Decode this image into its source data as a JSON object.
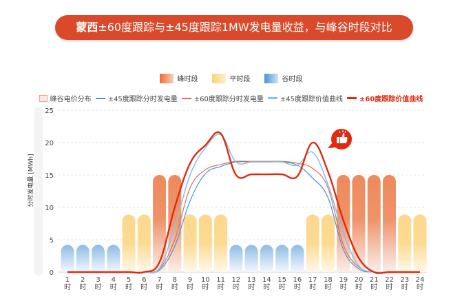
{
  "title": {
    "bold": "蒙西",
    "rest": "±60度跟踪与±45度跟踪1MW发电量收益，与峰谷时段对比"
  },
  "colors": {
    "peak": "#ee8a5c",
    "flat": "#fdd88e",
    "valley": "#8fbbe6",
    "banner": "#d9492a",
    "gen45": "#3b9ad6",
    "gen60": "#e8695a",
    "val45": "#86c3ea",
    "val60": "#e02a10"
  },
  "chart_data": {
    "type": "bar+line",
    "ylabel": "分时发电量 [MWh]",
    "ylim": [
      0,
      25
    ],
    "yticks": [
      0,
      5,
      10,
      15,
      20,
      25
    ],
    "grid": true,
    "categories": [
      "1时",
      "2时",
      "3时",
      "4时",
      "5时",
      "6时",
      "7时",
      "8时",
      "9时",
      "10时",
      "11时",
      "12时",
      "13时",
      "14时",
      "15时",
      "16时",
      "17时",
      "18时",
      "19时",
      "20时",
      "21时",
      "22时",
      "23时",
      "24时"
    ],
    "tick_numbers": [
      "1",
      "2",
      "3",
      "4",
      "5",
      "6",
      "7",
      "8",
      "9",
      "10",
      "11",
      "12",
      "13",
      "14",
      "15",
      "16",
      "17",
      "18",
      "19",
      "20",
      "21",
      "22",
      "23",
      "24"
    ],
    "tick_unit": "时",
    "period_legend": [
      {
        "key": "peak",
        "label": "峰时段"
      },
      {
        "key": "flat",
        "label": "平时段"
      },
      {
        "key": "valley",
        "label": "谷时段"
      }
    ],
    "bar_series": {
      "name": "峰谷电价分布",
      "periods": [
        "valley",
        "valley",
        "valley",
        "valley",
        "flat",
        "flat",
        "peak",
        "peak",
        "flat",
        "flat",
        "flat",
        "valley",
        "valley",
        "valley",
        "valley",
        "valley",
        "flat",
        "flat",
        "peak",
        "peak",
        "peak",
        "peak",
        "flat",
        "flat"
      ],
      "values": [
        4.2,
        4.2,
        4.2,
        4.2,
        8.9,
        8.9,
        15,
        15,
        8.9,
        8.9,
        8.9,
        4.2,
        4.2,
        4.2,
        4.2,
        4.2,
        8.9,
        8.9,
        15,
        15,
        15,
        15,
        8.9,
        8.9
      ]
    },
    "series": [
      {
        "name": "±45度跟踪分时发电量",
        "color": "gen45",
        "width": 1.2,
        "values": [
          0,
          0,
          0,
          0,
          0,
          0,
          0.3,
          4,
          11,
          15.2,
          16.3,
          17,
          17,
          17,
          17,
          16.5,
          14.5,
          11.5,
          3.5,
          0.5,
          0,
          0,
          0,
          0
        ]
      },
      {
        "name": "±60度跟踪分时发电量",
        "color": "gen60",
        "width": 1.2,
        "values": [
          0,
          0,
          0,
          0,
          0,
          0,
          0.5,
          5,
          13,
          15.8,
          16.6,
          17.1,
          17.1,
          17.1,
          17.1,
          16.8,
          16,
          13,
          4.2,
          0.8,
          0,
          0,
          0,
          0
        ]
      },
      {
        "name": "±45度跟踪价值曲线",
        "color": "val45",
        "width": 1.6,
        "values": [
          0,
          0,
          0,
          0,
          0,
          0,
          0.6,
          7,
          15,
          19.2,
          21.2,
          17,
          17,
          17,
          17,
          16.5,
          18.5,
          13.5,
          6,
          1,
          0,
          0,
          0,
          0
        ]
      },
      {
        "name": "±60度跟踪价值曲线",
        "color": "val60",
        "width": 2.4,
        "values": [
          0,
          0,
          0,
          0,
          0,
          0,
          1.5,
          10,
          16.8,
          19.6,
          21.4,
          15,
          15.1,
          15.1,
          15.1,
          14.8,
          20,
          15.5,
          8,
          2.2,
          0,
          0,
          0,
          0
        ]
      }
    ]
  }
}
